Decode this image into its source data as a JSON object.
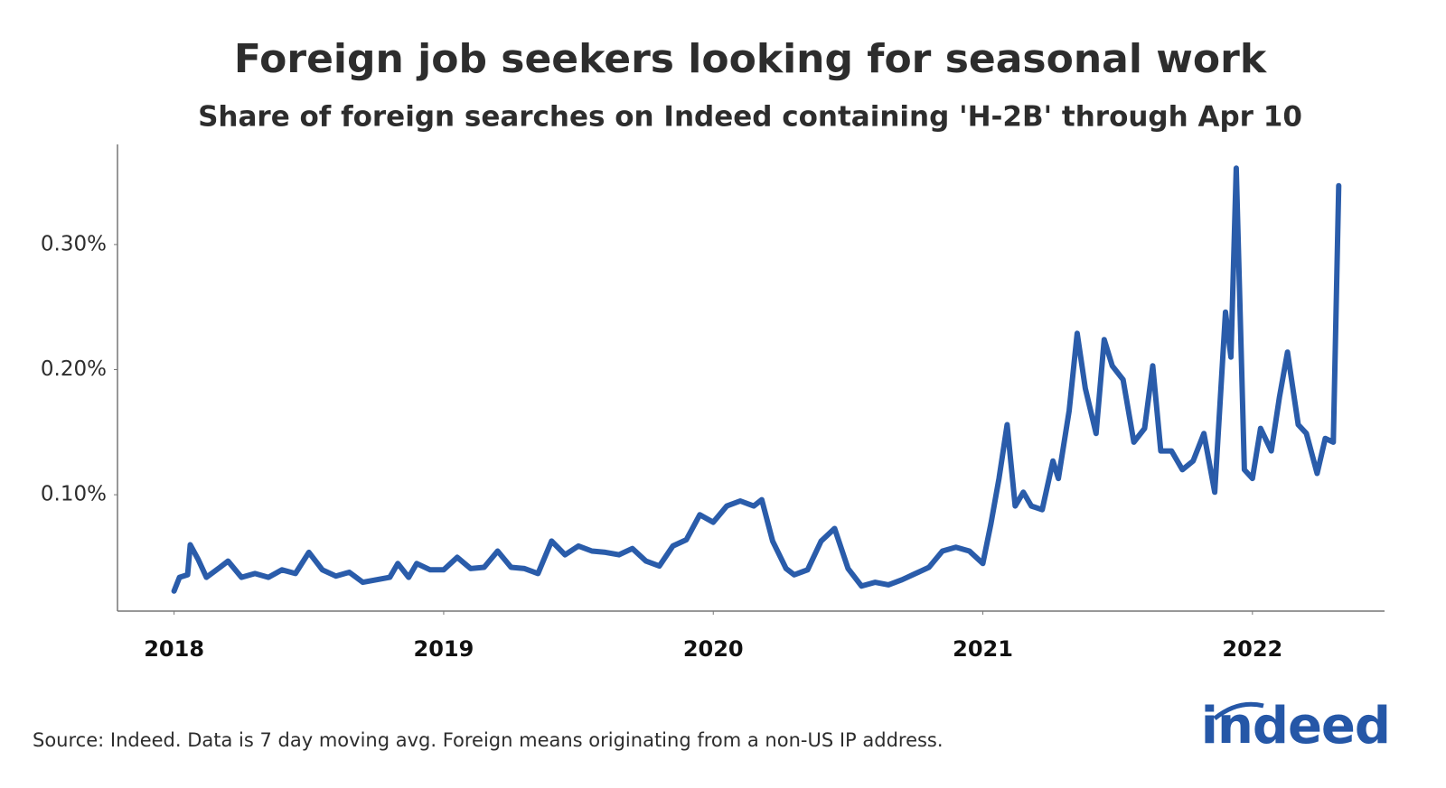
{
  "chart_data": {
    "type": "line",
    "title": "Foreign job seekers looking for seasonal work",
    "subtitle": "Share of foreign searches on Indeed containing 'H-2B' through Apr 10",
    "source": "Source: Indeed. Data is 7 day moving avg. Foreign means originating from a non-US IP address.",
    "logo": "indeed",
    "x": [
      2018.0,
      2018.02,
      2018.05,
      2018.06,
      2018.09,
      2018.12,
      2018.17,
      2018.2,
      2018.25,
      2018.3,
      2018.35,
      2018.4,
      2018.45,
      2018.5,
      2018.55,
      2018.6,
      2018.65,
      2018.7,
      2018.8,
      2018.83,
      2018.87,
      2018.9,
      2018.95,
      2019.0,
      2019.05,
      2019.1,
      2019.15,
      2019.2,
      2019.25,
      2019.3,
      2019.35,
      2019.4,
      2019.45,
      2019.5,
      2019.55,
      2019.6,
      2019.65,
      2019.7,
      2019.75,
      2019.8,
      2019.85,
      2019.9,
      2019.95,
      2020.0,
      2020.05,
      2020.1,
      2020.15,
      2020.18,
      2020.22,
      2020.27,
      2020.3,
      2020.35,
      2020.4,
      2020.45,
      2020.5,
      2020.55,
      2020.6,
      2020.65,
      2020.7,
      2020.75,
      2020.8,
      2020.85,
      2020.9,
      2020.95,
      2021.0,
      2021.03,
      2021.06,
      2021.09,
      2021.12,
      2021.15,
      2021.18,
      2021.22,
      2021.26,
      2021.28,
      2021.32,
      2021.35,
      2021.38,
      2021.42,
      2021.45,
      2021.48,
      2021.52,
      2021.56,
      2021.6,
      2021.63,
      2021.66,
      2021.7,
      2021.74,
      2021.78,
      2021.82,
      2021.86,
      2021.9,
      2021.92,
      2021.94,
      2021.97,
      2022.0,
      2022.03,
      2022.07,
      2022.1,
      2022.13,
      2022.17,
      2022.2,
      2022.24,
      2022.27,
      2022.3,
      2022.32
    ],
    "series": [
      {
        "name": "H-2B share",
        "color": "#2a5caa",
        "values": [
          0.023,
          0.034,
          0.036,
          0.06,
          0.048,
          0.034,
          0.042,
          0.047,
          0.034,
          0.037,
          0.034,
          0.04,
          0.037,
          0.054,
          0.04,
          0.035,
          0.038,
          0.03,
          0.034,
          0.045,
          0.034,
          0.045,
          0.04,
          0.04,
          0.05,
          0.041,
          0.042,
          0.055,
          0.042,
          0.041,
          0.037,
          0.063,
          0.052,
          0.059,
          0.055,
          0.054,
          0.052,
          0.057,
          0.047,
          0.043,
          0.059,
          0.064,
          0.084,
          0.078,
          0.091,
          0.095,
          0.091,
          0.096,
          0.063,
          0.041,
          0.036,
          0.04,
          0.063,
          0.073,
          0.041,
          0.027,
          0.03,
          0.028,
          0.032,
          0.037,
          0.042,
          0.055,
          0.058,
          0.055,
          0.045,
          0.077,
          0.113,
          0.156,
          0.091,
          0.102,
          0.091,
          0.088,
          0.127,
          0.113,
          0.167,
          0.229,
          0.185,
          0.149,
          0.224,
          0.203,
          0.192,
          0.142,
          0.153,
          0.203,
          0.135,
          0.135,
          0.12,
          0.127,
          0.149,
          0.102,
          0.246,
          0.21,
          0.361,
          0.12,
          0.113,
          0.153,
          0.135,
          0.178,
          0.214,
          0.156,
          0.149,
          0.117,
          0.145,
          0.142,
          0.347
        ]
      }
    ],
    "xlim": [
      2017.79,
      2022.49
    ],
    "xticks": [
      2018,
      2019,
      2020,
      2021,
      2022
    ],
    "ylim": [
      0.007,
      0.38
    ],
    "yticks": [
      {
        "value": 0.1,
        "label": "0.10%"
      },
      {
        "value": 0.2,
        "label": "0.20%"
      },
      {
        "value": 0.3,
        "label": "0.30%"
      }
    ],
    "grid": false
  }
}
